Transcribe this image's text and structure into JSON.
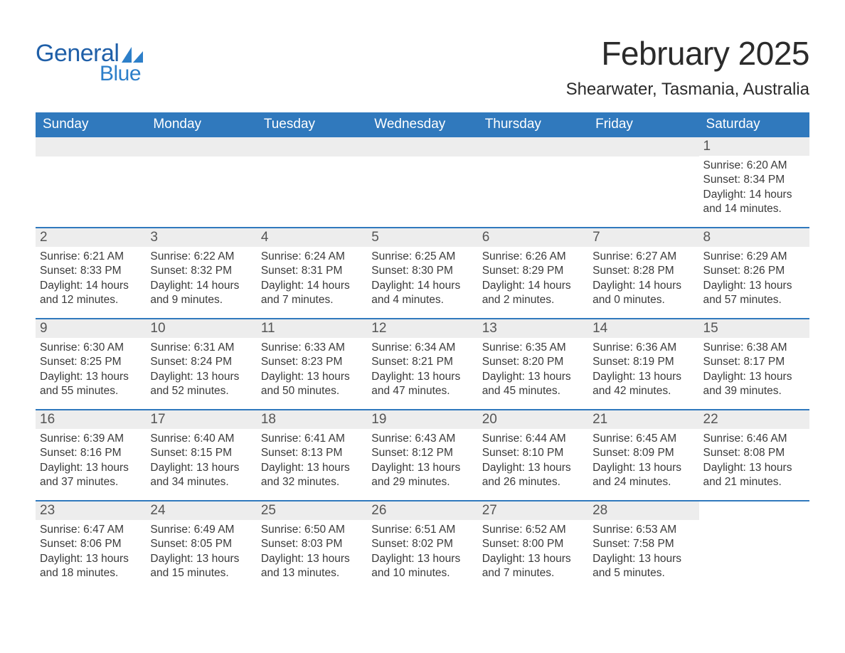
{
  "logo": {
    "word1": "General",
    "word2": "Blue",
    "color1": "#1f5fa8",
    "color2": "#2d7fc9",
    "sail_color": "#2d7fc9"
  },
  "title": "February 2025",
  "location": "Shearwater, Tasmania, Australia",
  "colors": {
    "header_bg": "#3079bd",
    "header_text": "#ffffff",
    "daynum_bg": "#ededed",
    "daynum_text": "#555555",
    "body_text": "#3a3a3a",
    "row_border": "#3079bd",
    "page_bg": "#ffffff"
  },
  "days_of_week": [
    "Sunday",
    "Monday",
    "Tuesday",
    "Wednesday",
    "Thursday",
    "Friday",
    "Saturday"
  ],
  "weeks": [
    [
      {
        "empty": true
      },
      {
        "empty": true
      },
      {
        "empty": true
      },
      {
        "empty": true
      },
      {
        "empty": true
      },
      {
        "empty": true
      },
      {
        "day": "1",
        "sunrise": "Sunrise: 6:20 AM",
        "sunset": "Sunset: 8:34 PM",
        "daylight": "Daylight: 14 hours and 14 minutes."
      }
    ],
    [
      {
        "day": "2",
        "sunrise": "Sunrise: 6:21 AM",
        "sunset": "Sunset: 8:33 PM",
        "daylight": "Daylight: 14 hours and 12 minutes."
      },
      {
        "day": "3",
        "sunrise": "Sunrise: 6:22 AM",
        "sunset": "Sunset: 8:32 PM",
        "daylight": "Daylight: 14 hours and 9 minutes."
      },
      {
        "day": "4",
        "sunrise": "Sunrise: 6:24 AM",
        "sunset": "Sunset: 8:31 PM",
        "daylight": "Daylight: 14 hours and 7 minutes."
      },
      {
        "day": "5",
        "sunrise": "Sunrise: 6:25 AM",
        "sunset": "Sunset: 8:30 PM",
        "daylight": "Daylight: 14 hours and 4 minutes."
      },
      {
        "day": "6",
        "sunrise": "Sunrise: 6:26 AM",
        "sunset": "Sunset: 8:29 PM",
        "daylight": "Daylight: 14 hours and 2 minutes."
      },
      {
        "day": "7",
        "sunrise": "Sunrise: 6:27 AM",
        "sunset": "Sunset: 8:28 PM",
        "daylight": "Daylight: 14 hours and 0 minutes."
      },
      {
        "day": "8",
        "sunrise": "Sunrise: 6:29 AM",
        "sunset": "Sunset: 8:26 PM",
        "daylight": "Daylight: 13 hours and 57 minutes."
      }
    ],
    [
      {
        "day": "9",
        "sunrise": "Sunrise: 6:30 AM",
        "sunset": "Sunset: 8:25 PM",
        "daylight": "Daylight: 13 hours and 55 minutes."
      },
      {
        "day": "10",
        "sunrise": "Sunrise: 6:31 AM",
        "sunset": "Sunset: 8:24 PM",
        "daylight": "Daylight: 13 hours and 52 minutes."
      },
      {
        "day": "11",
        "sunrise": "Sunrise: 6:33 AM",
        "sunset": "Sunset: 8:23 PM",
        "daylight": "Daylight: 13 hours and 50 minutes."
      },
      {
        "day": "12",
        "sunrise": "Sunrise: 6:34 AM",
        "sunset": "Sunset: 8:21 PM",
        "daylight": "Daylight: 13 hours and 47 minutes."
      },
      {
        "day": "13",
        "sunrise": "Sunrise: 6:35 AM",
        "sunset": "Sunset: 8:20 PM",
        "daylight": "Daylight: 13 hours and 45 minutes."
      },
      {
        "day": "14",
        "sunrise": "Sunrise: 6:36 AM",
        "sunset": "Sunset: 8:19 PM",
        "daylight": "Daylight: 13 hours and 42 minutes."
      },
      {
        "day": "15",
        "sunrise": "Sunrise: 6:38 AM",
        "sunset": "Sunset: 8:17 PM",
        "daylight": "Daylight: 13 hours and 39 minutes."
      }
    ],
    [
      {
        "day": "16",
        "sunrise": "Sunrise: 6:39 AM",
        "sunset": "Sunset: 8:16 PM",
        "daylight": "Daylight: 13 hours and 37 minutes."
      },
      {
        "day": "17",
        "sunrise": "Sunrise: 6:40 AM",
        "sunset": "Sunset: 8:15 PM",
        "daylight": "Daylight: 13 hours and 34 minutes."
      },
      {
        "day": "18",
        "sunrise": "Sunrise: 6:41 AM",
        "sunset": "Sunset: 8:13 PM",
        "daylight": "Daylight: 13 hours and 32 minutes."
      },
      {
        "day": "19",
        "sunrise": "Sunrise: 6:43 AM",
        "sunset": "Sunset: 8:12 PM",
        "daylight": "Daylight: 13 hours and 29 minutes."
      },
      {
        "day": "20",
        "sunrise": "Sunrise: 6:44 AM",
        "sunset": "Sunset: 8:10 PM",
        "daylight": "Daylight: 13 hours and 26 minutes."
      },
      {
        "day": "21",
        "sunrise": "Sunrise: 6:45 AM",
        "sunset": "Sunset: 8:09 PM",
        "daylight": "Daylight: 13 hours and 24 minutes."
      },
      {
        "day": "22",
        "sunrise": "Sunrise: 6:46 AM",
        "sunset": "Sunset: 8:08 PM",
        "daylight": "Daylight: 13 hours and 21 minutes."
      }
    ],
    [
      {
        "day": "23",
        "sunrise": "Sunrise: 6:47 AM",
        "sunset": "Sunset: 8:06 PM",
        "daylight": "Daylight: 13 hours and 18 minutes."
      },
      {
        "day": "24",
        "sunrise": "Sunrise: 6:49 AM",
        "sunset": "Sunset: 8:05 PM",
        "daylight": "Daylight: 13 hours and 15 minutes."
      },
      {
        "day": "25",
        "sunrise": "Sunrise: 6:50 AM",
        "sunset": "Sunset: 8:03 PM",
        "daylight": "Daylight: 13 hours and 13 minutes."
      },
      {
        "day": "26",
        "sunrise": "Sunrise: 6:51 AM",
        "sunset": "Sunset: 8:02 PM",
        "daylight": "Daylight: 13 hours and 10 minutes."
      },
      {
        "day": "27",
        "sunrise": "Sunrise: 6:52 AM",
        "sunset": "Sunset: 8:00 PM",
        "daylight": "Daylight: 13 hours and 7 minutes."
      },
      {
        "day": "28",
        "sunrise": "Sunrise: 6:53 AM",
        "sunset": "Sunset: 7:58 PM",
        "daylight": "Daylight: 13 hours and 5 minutes."
      },
      {
        "empty": true,
        "no_bg": true
      }
    ]
  ]
}
